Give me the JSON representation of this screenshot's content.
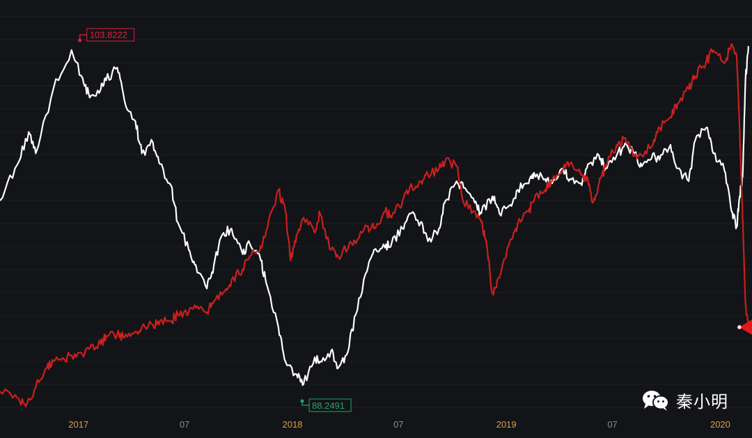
{
  "chart_data": {
    "type": "line",
    "x_ticks": [
      "2017",
      "07",
      "2018",
      "07",
      "2019",
      "07",
      "2020"
    ],
    "x_ticks_year_flags": [
      true,
      false,
      true,
      false,
      true,
      false,
      true
    ],
    "ylim": [
      87,
      105.5
    ],
    "grid": true,
    "max_label": "103.8222",
    "min_label": "88.2491",
    "series": [
      {
        "color": "#ffffff",
        "points": [
          [
            "2016-09",
            96.8
          ],
          [
            "2016-10",
            98.5
          ],
          [
            "2016-10-20",
            100.0
          ],
          [
            "2016-11",
            99.0
          ],
          [
            "2016-12",
            102.0
          ],
          [
            "2017-01",
            103.82
          ],
          [
            "2017-01-20",
            102.5
          ],
          [
            "2017-02",
            101.6
          ],
          [
            "2017-02-20",
            102.0
          ],
          [
            "2017-03",
            102.4
          ],
          [
            "2017-03-20",
            103.0
          ],
          [
            "2017-04",
            101.5
          ],
          [
            "2017-04-20",
            100.5
          ],
          [
            "2017-05",
            99.0
          ],
          [
            "2017-05-20",
            99.5
          ],
          [
            "2017-06",
            98.5
          ],
          [
            "2017-06-20",
            97.5
          ],
          [
            "2017-07",
            95.8
          ],
          [
            "2017-07-20",
            94.5
          ],
          [
            "2017-08",
            93.8
          ],
          [
            "2017-08-20",
            92.7
          ],
          [
            "2017-09",
            93.8
          ],
          [
            "2017-09-15",
            95.2
          ],
          [
            "2017-10",
            95.5
          ],
          [
            "2017-10-20",
            94.3
          ],
          [
            "2017-11",
            94.8
          ],
          [
            "2017-11-20",
            94.0
          ],
          [
            "2017-12",
            92.8
          ],
          [
            "2017-12-20",
            90.9
          ],
          [
            "2018-01",
            89.3
          ],
          [
            "2018-01-20",
            88.7
          ],
          [
            "2018-02",
            88.25
          ],
          [
            "2018-02-20",
            89.5
          ],
          [
            "2018-03",
            89.3
          ],
          [
            "2018-03-20",
            89.8
          ],
          [
            "2018-04",
            89.0
          ],
          [
            "2018-04-15",
            89.6
          ],
          [
            "2018-05",
            91.5
          ],
          [
            "2018-05-20",
            93.5
          ],
          [
            "2018-06",
            94.5
          ],
          [
            "2018-06-20",
            94.6
          ],
          [
            "2018-07",
            94.8
          ],
          [
            "2018-07-20",
            95.5
          ],
          [
            "2018-08",
            96.2
          ],
          [
            "2018-08-20",
            95.8
          ],
          [
            "2018-09",
            94.9
          ],
          [
            "2018-09-20",
            95.5
          ],
          [
            "2018-10",
            96.8
          ],
          [
            "2018-10-20",
            97.7
          ],
          [
            "2018-11",
            97.4
          ],
          [
            "2018-11-20",
            96.7
          ],
          [
            "2018-12",
            96.2
          ],
          [
            "2018-12-20",
            97.0
          ],
          [
            "2019-01",
            96.2
          ],
          [
            "2019-01-20",
            96.6
          ],
          [
            "2019-02",
            97.3
          ],
          [
            "2019-02-20",
            97.6
          ],
          [
            "2019-03",
            98.1
          ],
          [
            "2019-03-20",
            97.8
          ],
          [
            "2019-04",
            97.6
          ],
          [
            "2019-04-20",
            98.3
          ],
          [
            "2019-05",
            97.8
          ],
          [
            "2019-05-20",
            97.6
          ],
          [
            "2019-06",
            98.5
          ],
          [
            "2019-06-20",
            98.9
          ],
          [
            "2019-07",
            98.3
          ],
          [
            "2019-07-20",
            98.9
          ],
          [
            "2019-08",
            99.3
          ],
          [
            "2019-08-20",
            99.0
          ],
          [
            "2019-09",
            98.4
          ],
          [
            "2019-09-20",
            99.0
          ],
          [
            "2019-10",
            98.7
          ],
          [
            "2019-10-20",
            99.4
          ],
          [
            "2019-11",
            98.3
          ],
          [
            "2019-11-20",
            97.7
          ],
          [
            "2019-12",
            99.6
          ],
          [
            "2019-12-20",
            100.2
          ],
          [
            "2020-01",
            99.0
          ],
          [
            "2020-01-20",
            98.2
          ],
          [
            "2020-02",
            96.3
          ],
          [
            "2020-02-10",
            95.6
          ],
          [
            "2020-02-15",
            97.0
          ],
          [
            "2020-02-20",
            97.9
          ],
          [
            "2020-02-25",
            102.5
          ],
          [
            "2020-03",
            104.0
          ]
        ]
      },
      {
        "color": "#cc1f1f",
        "points": [
          [
            "2016-09",
            87.9
          ],
          [
            "2016-10",
            87.6
          ],
          [
            "2016-10-15",
            87.2
          ],
          [
            "2016-11",
            88.1
          ],
          [
            "2016-11-20",
            89.0
          ],
          [
            "2016-12",
            89.3
          ],
          [
            "2016-12-20",
            89.4
          ],
          [
            "2017-01",
            89.6
          ],
          [
            "2017-01-20",
            89.6
          ],
          [
            "2017-02",
            89.9
          ],
          [
            "2017-02-20",
            90.1
          ],
          [
            "2017-03",
            90.5
          ],
          [
            "2017-03-20",
            90.6
          ],
          [
            "2017-04",
            90.4
          ],
          [
            "2017-04-20",
            90.7
          ],
          [
            "2017-05",
            90.9
          ],
          [
            "2017-05-20",
            91.0
          ],
          [
            "2017-06",
            91.2
          ],
          [
            "2017-06-20",
            91.2
          ],
          [
            "2017-07",
            91.5
          ],
          [
            "2017-07-20",
            91.6
          ],
          [
            "2017-08",
            91.8
          ],
          [
            "2017-08-20",
            91.6
          ],
          [
            "2017-09",
            92.1
          ],
          [
            "2017-09-20",
            92.6
          ],
          [
            "2017-10",
            93.1
          ],
          [
            "2017-10-20",
            93.6
          ],
          [
            "2017-11",
            94.2
          ],
          [
            "2017-11-20",
            94.7
          ],
          [
            "2017-12",
            95.5
          ],
          [
            "2017-12-20",
            97.3
          ],
          [
            "2018-01",
            96.3
          ],
          [
            "2018-01-10",
            94.0
          ],
          [
            "2018-01-20",
            95.2
          ],
          [
            "2018-02",
            96.0
          ],
          [
            "2018-02-20",
            95.3
          ],
          [
            "2018-03",
            96.2
          ],
          [
            "2018-03-20",
            94.5
          ],
          [
            "2018-04",
            94.2
          ],
          [
            "2018-04-20",
            94.8
          ],
          [
            "2018-05",
            94.8
          ],
          [
            "2018-05-20",
            95.6
          ],
          [
            "2018-06",
            95.5
          ],
          [
            "2018-06-20",
            96.3
          ],
          [
            "2018-07",
            96.0
          ],
          [
            "2018-07-20",
            96.8
          ],
          [
            "2018-08",
            97.4
          ],
          [
            "2018-08-20",
            97.7
          ],
          [
            "2018-09",
            98.0
          ],
          [
            "2018-09-20",
            98.3
          ],
          [
            "2018-10",
            98.7
          ],
          [
            "2018-10-20",
            98.4
          ],
          [
            "2018-11",
            96.7
          ],
          [
            "2018-11-20",
            96.3
          ],
          [
            "2018-12",
            95.8
          ],
          [
            "2018-12-10",
            94.8
          ],
          [
            "2018-12-20",
            92.5
          ],
          [
            "2019-01",
            93.2
          ],
          [
            "2019-01-20",
            95.0
          ],
          [
            "2019-02",
            95.7
          ],
          [
            "2019-02-20",
            96.3
          ],
          [
            "2019-03",
            96.8
          ],
          [
            "2019-03-20",
            97.3
          ],
          [
            "2019-04",
            97.7
          ],
          [
            "2019-04-20",
            98.3
          ],
          [
            "2019-05",
            98.5
          ],
          [
            "2019-05-20",
            98.0
          ],
          [
            "2019-06",
            97.8
          ],
          [
            "2019-06-10",
            96.7
          ],
          [
            "2019-06-20",
            97.6
          ],
          [
            "2019-07",
            98.4
          ],
          [
            "2019-07-20",
            99.4
          ],
          [
            "2019-08",
            99.7
          ],
          [
            "2019-08-20",
            98.9
          ],
          [
            "2019-09",
            98.9
          ],
          [
            "2019-09-20",
            99.4
          ],
          [
            "2019-10",
            100.2
          ],
          [
            "2019-10-20",
            100.7
          ],
          [
            "2019-11",
            101.3
          ],
          [
            "2019-11-20",
            102.0
          ],
          [
            "2019-12",
            102.6
          ],
          [
            "2019-12-20",
            103.3
          ],
          [
            "2020-01",
            103.8
          ],
          [
            "2020-01-20",
            103.2
          ],
          [
            "2020-02",
            104.1
          ],
          [
            "2020-02-10",
            103.5
          ],
          [
            "2020-02-15",
            100.0
          ],
          [
            "2020-02-20",
            96.0
          ],
          [
            "2020-02-25",
            92.0
          ],
          [
            "2020-03",
            90.9
          ]
        ]
      }
    ]
  },
  "watermark": {
    "text": "秦小明",
    "icon": "wechat-icon"
  }
}
